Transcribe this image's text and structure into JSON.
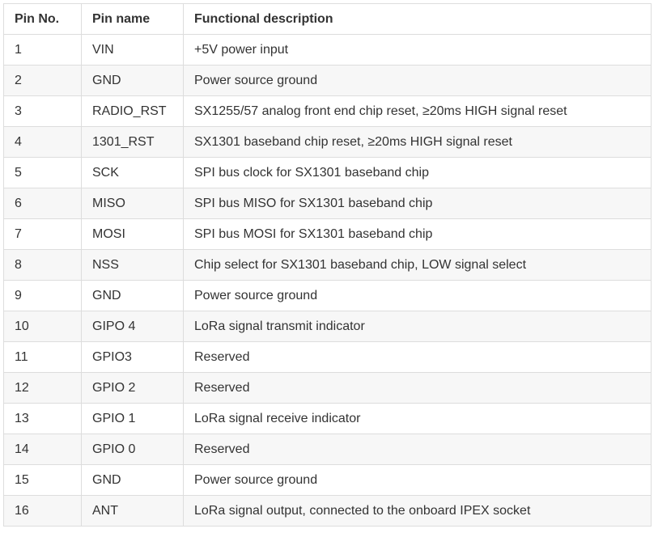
{
  "table": {
    "headers": [
      "Pin No.",
      "Pin name",
      "Functional description"
    ],
    "rows": [
      [
        "1",
        "VIN",
        "+5V power  input"
      ],
      [
        "2",
        "GND",
        "Power source  ground"
      ],
      [
        "3",
        "RADIO_RST",
        "SX1255/57  analog front end chip reset, ≥20ms HIGH signal reset"
      ],
      [
        "4",
        "1301_RST",
        "SX1301  baseband chip reset, ≥20ms HIGH signal reset"
      ],
      [
        "5",
        "SCK",
        "SPI bus clock  for SX1301 baseband chip"
      ],
      [
        "6",
        "MISO",
        "SPI bus MISO  for SX1301 baseband chip"
      ],
      [
        "7",
        "MOSI",
        "SPI bus MOSI  for SX1301 baseband chip"
      ],
      [
        "8",
        "NSS",
        "Chip select  for SX1301 baseband chip, LOW signal select"
      ],
      [
        "9",
        "GND",
        "Power source  ground"
      ],
      [
        "10",
        "GIPO 4",
        "LoRa signal transmit indicator"
      ],
      [
        "11",
        "GPIO3",
        "Reserved"
      ],
      [
        "12",
        "GPIO 2",
        "Reserved"
      ],
      [
        "13",
        "GPIO 1",
        "LoRa signal receive indicator"
      ],
      [
        "14",
        "GPIO 0",
        "Reserved"
      ],
      [
        "15",
        "GND",
        "Power source  ground"
      ],
      [
        "16",
        "ANT",
        "LoRa signal output, connected to the onboard IPEX socket"
      ]
    ]
  },
  "colors": {
    "border": "#dddddd",
    "text": "#333333",
    "row_stripe": "#f7f7f7"
  }
}
